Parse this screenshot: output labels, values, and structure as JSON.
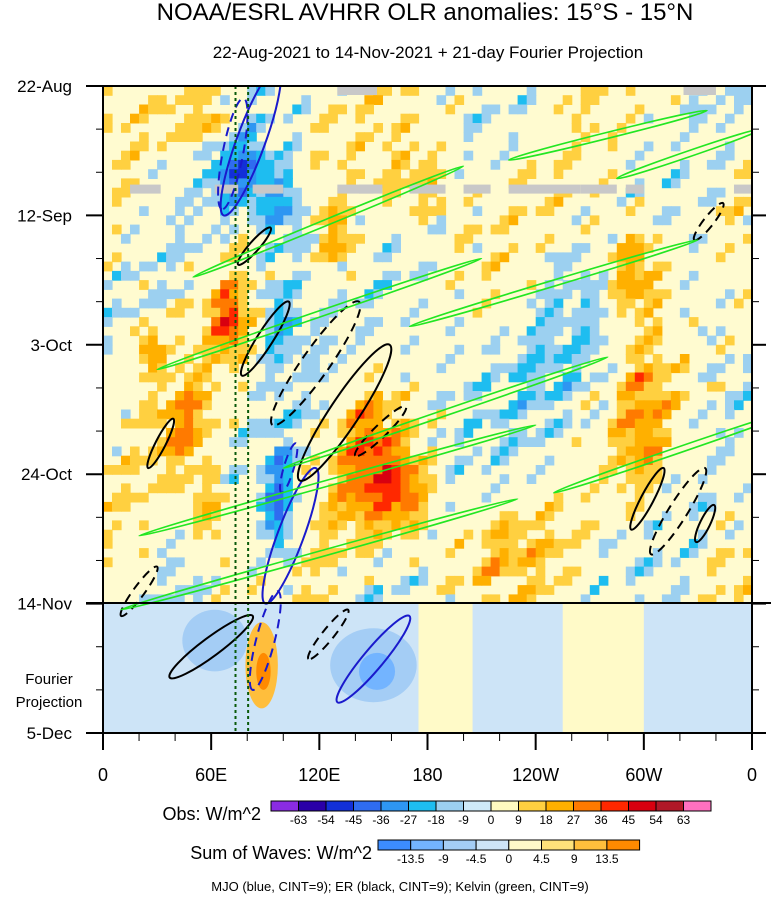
{
  "chart_data": {
    "type": "heatmap",
    "title": "NOAA/ESRL AVHRR OLR anomalies: 15°S - 15°N",
    "subtitle": "22-Aug-2021 to 14-Nov-2021 + 21-day Fourier Projection",
    "x_ticks": [
      "0",
      "60E",
      "120E",
      "180",
      "120W",
      "60W",
      "0"
    ],
    "x_tick_values": [
      0,
      60,
      120,
      180,
      240,
      300,
      360
    ],
    "xlim": [
      0,
      360
    ],
    "y_ticks": [
      "22-Aug",
      "12-Sep",
      "3-Oct",
      "24-Oct",
      "14-Nov",
      "5-Dec"
    ],
    "y_tick_values": [
      "2021-08-22",
      "2021-09-12",
      "2021-10-03",
      "2021-10-24",
      "2021-11-14",
      "2021-12-05"
    ],
    "ylim": [
      "2021-08-22",
      "2021-12-05"
    ],
    "y_reversed": true,
    "projection_start": "2021-11-14",
    "projection_label": "Fourier Projection",
    "reference_lines_lon": [
      73.5,
      80.5
    ],
    "obs_colorbar": {
      "label": "Obs: W/m^2",
      "levels": [
        -63,
        -54,
        -45,
        -36,
        -27,
        -18,
        -9,
        0,
        9,
        18,
        27,
        36,
        45,
        54,
        63
      ],
      "colors": [
        "#8a2be2",
        "#2a00a8",
        "#1230d8",
        "#2f6cf0",
        "#2e96f2",
        "#1ebdf0",
        "#9cd0f0",
        "#cfeaf8",
        "#fffac0",
        "#ffd040",
        "#ffb000",
        "#ff7a00",
        "#ff2800",
        "#d80010",
        "#b01828",
        "#ff70c0"
      ]
    },
    "waves_colorbar": {
      "label": "Sum of Waves: W/m^2",
      "levels": [
        -13.5,
        -9,
        -4.5,
        0,
        4.5,
        9,
        13.5
      ],
      "colors": [
        "#3c8cff",
        "#73b4ff",
        "#a4cdf5",
        "#cde4f7",
        "#fffac8",
        "#ffe27a",
        "#ffbe3c",
        "#ff8a00"
      ]
    },
    "footer": "MJO (blue, CINT=9); ER (black, CINT=9); Kelvin (green, CINT=9)",
    "series": [
      {
        "name": "MJO",
        "color": "#1a1acc",
        "contours": [
          {
            "lon": 82,
            "date": "2021-08-31",
            "len_lon": 30,
            "len_days": 24,
            "dashed": false
          },
          {
            "lon": 72,
            "date": "2021-09-02",
            "len_lon": 12,
            "len_days": 18,
            "dashed": true
          },
          {
            "lon": 104,
            "date": "2021-11-03",
            "len_lon": 28,
            "len_days": 22,
            "dashed": false
          },
          {
            "lon": 150,
            "date": "2021-11-23",
            "len_lon": 40,
            "len_days": 14,
            "dashed": false
          },
          {
            "lon": 90,
            "date": "2021-11-20",
            "len_lon": 14,
            "len_days": 16,
            "dashed": true
          },
          {
            "lon": 103,
            "date": "2021-10-23",
            "len_lon": 8,
            "len_days": 8,
            "dashed": true
          }
        ]
      },
      {
        "name": "ER",
        "color": "#000000",
        "contours": [
          {
            "lon": 90,
            "date": "2021-10-02",
            "len_lon": 26,
            "len_days": 12,
            "dashed": false
          },
          {
            "lon": 118,
            "date": "2021-10-06",
            "len_lon": 48,
            "len_days": 20,
            "dashed": true
          },
          {
            "lon": 134,
            "date": "2021-10-14",
            "len_lon": 50,
            "len_days": 22,
            "dashed": false
          },
          {
            "lon": 154,
            "date": "2021-10-17",
            "len_lon": 28,
            "len_days": 8,
            "dashed": true
          },
          {
            "lon": 32,
            "date": "2021-10-19",
            "len_lon": 14,
            "len_days": 8,
            "dashed": false
          },
          {
            "lon": 84,
            "date": "2021-09-17",
            "len_lon": 18,
            "len_days": 6,
            "dashed": false
          },
          {
            "lon": 302,
            "date": "2021-10-28",
            "len_lon": 18,
            "len_days": 10,
            "dashed": false
          },
          {
            "lon": 319,
            "date": "2021-10-30",
            "len_lon": 30,
            "len_days": 14,
            "dashed": true
          },
          {
            "lon": 334,
            "date": "2021-11-01",
            "len_lon": 10,
            "len_days": 6,
            "dashed": false
          },
          {
            "lon": 336,
            "date": "2021-09-13",
            "len_lon": 16,
            "len_days": 6,
            "dashed": true
          },
          {
            "lon": 60,
            "date": "2021-11-21",
            "len_lon": 46,
            "len_days": 10,
            "dashed": false
          },
          {
            "lon": 125,
            "date": "2021-11-19",
            "len_lon": 22,
            "len_days": 8,
            "dashed": true
          },
          {
            "lon": 20,
            "date": "2021-11-12",
            "len_lon": 20,
            "len_days": 8,
            "dashed": true
          }
        ]
      },
      {
        "name": "Kelvin",
        "color": "#22e622",
        "contours": [
          {
            "lon": 125,
            "date": "2021-09-13",
            "len_lon": 150,
            "len_days": 18,
            "dashed": false
          },
          {
            "lon": 120,
            "date": "2021-09-28",
            "len_lon": 180,
            "len_days": 18,
            "dashed": false
          },
          {
            "lon": 250,
            "date": "2021-09-23",
            "len_lon": 160,
            "len_days": 14,
            "dashed": false
          },
          {
            "lon": 190,
            "date": "2021-10-14",
            "len_lon": 180,
            "len_days": 18,
            "dashed": false
          },
          {
            "lon": 130,
            "date": "2021-10-25",
            "len_lon": 220,
            "len_days": 18,
            "dashed": false
          },
          {
            "lon": 120,
            "date": "2021-11-06",
            "len_lon": 220,
            "len_days": 18,
            "dashed": false
          },
          {
            "lon": 320,
            "date": "2021-10-20",
            "len_lon": 140,
            "len_days": 14,
            "dashed": false
          },
          {
            "lon": 280,
            "date": "2021-08-30",
            "len_lon": 110,
            "len_days": 8,
            "dashed": false
          },
          {
            "lon": 325,
            "date": "2021-09-02",
            "len_lon": 80,
            "len_days": 8,
            "dashed": false
          }
        ]
      }
    ]
  }
}
